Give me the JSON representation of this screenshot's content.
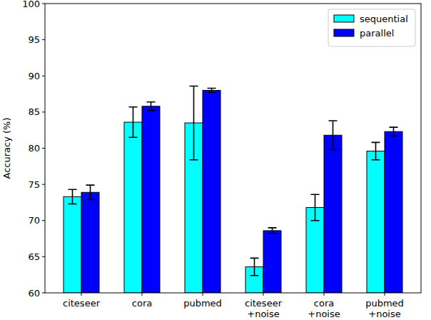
{
  "chart_data": {
    "type": "bar",
    "y_label": "Accuracy (%)",
    "categories": [
      "citeseer",
      "cora",
      "pubmed",
      "citeseer\n+noise",
      "cora\n+noise",
      "pubmed\n+noise"
    ],
    "series": [
      {
        "name": "sequential",
        "color": "#00ffff",
        "values": [
          73.3,
          83.6,
          83.5,
          63.6,
          71.8,
          79.6
        ],
        "errors": [
          1.0,
          2.1,
          5.1,
          1.2,
          1.8,
          1.2
        ]
      },
      {
        "name": "parallel",
        "color": "#0000ff",
        "values": [
          73.9,
          85.8,
          88.0,
          68.6,
          81.8,
          82.3
        ],
        "errors": [
          1.0,
          0.6,
          0.3,
          0.4,
          2.0,
          0.6
        ]
      }
    ],
    "ylim": [
      60,
      100
    ],
    "yticks": [
      60,
      65,
      70,
      75,
      80,
      85,
      90,
      95,
      100
    ],
    "legend": "upper right"
  }
}
